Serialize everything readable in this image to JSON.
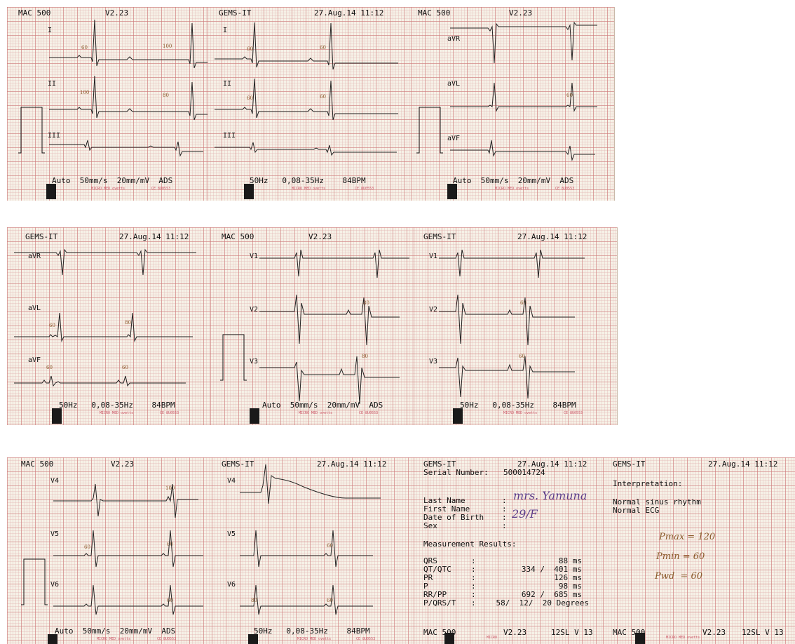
{
  "strips": [
    {
      "panels": [
        {
          "header_left": "MAC 500",
          "header_right": "V2.23",
          "leads": [
            "I",
            "II",
            "III"
          ],
          "footer": "Auto  50mm/s  20mm/mV  ADS",
          "micro": "MICRO MED ovetts",
          "ce": "CE 8U0553",
          "annotations": [
            "60",
            "100",
            "100",
            "80"
          ],
          "calibration": true
        },
        {
          "header_left": "GEMS-IT",
          "header_right": "27.Aug.14 11:12",
          "leads": [
            "I",
            "II",
            "III"
          ],
          "footer": "50Hz   0,08-35Hz    84BPM",
          "micro": "MICRO MED ovetts",
          "ce": "CE 8U0553",
          "annotations": [
            "60",
            "60",
            "60",
            "60"
          ],
          "calibration": false
        },
        {
          "header_left": "MAC 500",
          "header_right": "V2.23",
          "leads": [
            "aVR",
            "aVL",
            "aVF"
          ],
          "footer": "Auto  50mm/s  20mm/mV  ADS",
          "micro": "MICRO MED ovetts",
          "ce": "CE 8U0553",
          "annotations": [
            "60"
          ],
          "calibration": true
        }
      ]
    },
    {
      "panels": [
        {
          "header_left": "GEMS-IT",
          "header_right": "27.Aug.14 11:12",
          "leads": [
            "aVR",
            "aVL",
            "aVF"
          ],
          "footer": "50Hz   0,08-35Hz    84BPM",
          "micro": "MICRO MED ovetts",
          "ce": "CE 8U0553",
          "annotations": [
            "60",
            "80",
            "60",
            "60"
          ],
          "calibration": false
        },
        {
          "header_left": "MAC 500",
          "header_right": "V2.23",
          "leads": [
            "V1",
            "V2",
            "V3"
          ],
          "footer": "Auto  50mm/s  20mm/mV  ADS",
          "micro": "MICRO MED ovetts",
          "ce": "CE 8U0553",
          "annotations": [
            "80",
            "80"
          ],
          "calibration": true
        },
        {
          "header_left": "GEMS-IT",
          "header_right": "27.Aug.14 11:12",
          "leads": [
            "V1",
            "V2",
            "V3"
          ],
          "footer": "50Hz   0,08-35Hz    84BPM",
          "micro": "MICRO MED ovetts",
          "ce": "CE 8U0553",
          "annotations": [
            "60",
            "60"
          ],
          "calibration": false
        }
      ]
    },
    {
      "panels": [
        {
          "header_left": "MAC 500",
          "header_right": "V2.23",
          "leads": [
            "V4",
            "V5",
            "V6"
          ],
          "footer": "Auto  50mm/s  20mm/mV  ADS",
          "micro": "MICRO MED ovetts",
          "ce": "CE 8U0553",
          "annotations": [
            "100",
            "60",
            "60",
            "60"
          ],
          "calibration": true
        },
        {
          "header_left": "GEMS-IT",
          "header_right": "27.Aug.14 11:12",
          "leads": [
            "V4",
            "V5",
            "V6"
          ],
          "footer": "50Hz   0,08-35Hz    84BPM",
          "micro": "MICRO MED ovetts",
          "ce": "CE 8U0553",
          "annotations": [
            "60",
            "80",
            "60"
          ],
          "calibration": false
        }
      ],
      "report": {
        "header_left": "GEMS-IT",
        "header_right": "27.Aug.14 11:12",
        "serial_label": "Serial Number:",
        "serial_value": "500014724",
        "fields": [
          {
            "label": "Last Name",
            "handwritten": "mrs. Yamuna"
          },
          {
            "label": "First Name",
            "handwritten": ""
          },
          {
            "label": "Date of Birth",
            "handwritten": "29/F"
          },
          {
            "label": "Sex",
            "handwritten": ""
          }
        ],
        "measurement_title": "Measurement Results:",
        "measurements": [
          {
            "label": "QRS",
            "value": "88 ms"
          },
          {
            "label": "QT/QTC",
            "value": "334 /  401 ms"
          },
          {
            "label": "PR",
            "value": "126 ms"
          },
          {
            "label": "P",
            "value": "98 ms"
          },
          {
            "label": "RR/PP",
            "value": "692 /  685 ms"
          },
          {
            "label": "P/QRS/T",
            "value": "58/  12/  20 Degrees"
          }
        ],
        "footer_left": "MAC 500",
        "footer_mid": "V2.23",
        "footer_right": "12SL V 13",
        "micro": "MICRO"
      },
      "interpretation": {
        "header_left": "GEMS-IT",
        "header_right": "27.Aug.14 11:12",
        "title": "Interpretation:",
        "lines": [
          "Normal sinus rhythm",
          "Normal ECG"
        ],
        "handwritten": [
          "Pmax = 120",
          "Pmin = 60",
          "Pwd  = 60"
        ],
        "footer_left": "MAC 500",
        "footer_mid": "V2.23",
        "footer_right": "12SL V 13",
        "micro": "MICRO MED ovetts"
      }
    }
  ]
}
